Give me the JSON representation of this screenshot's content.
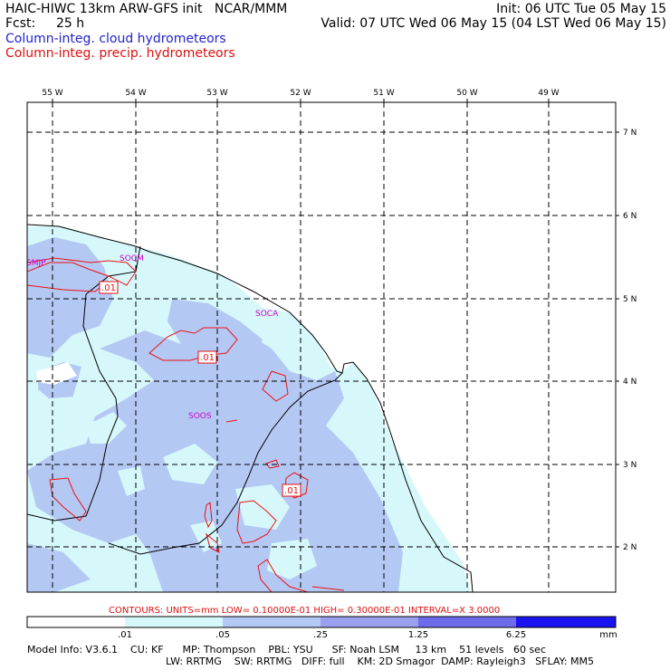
{
  "header": {
    "title_left": "HAIC-HIWC 13km ARW-GFS init   NCAR/MMM",
    "fcst_label": "Fcst:",
    "fcst_value": "25 h",
    "init": "Init: 06 UTC Tue 05 May 15",
    "valid": "Valid: 07 UTC Wed 06 May 15 (04 LST Wed 06 May 15)",
    "field_cloud": "Column-integ. cloud hydrometeors",
    "field_precip": "Column-integ. precip. hydrometeors"
  },
  "map": {
    "lon_labels": [
      "55 W",
      "54 W",
      "53 W",
      "52 W",
      "51 W",
      "50 W",
      "49 W"
    ],
    "lat_labels": [
      "7 N",
      "6 N",
      "5 N",
      "4 N",
      "3 N",
      "2 N"
    ],
    "stations": [
      "SMJP",
      "SOCM",
      "SOCA",
      "SOOS"
    ],
    "contour_labels": [
      ".01",
      ".01",
      ".01"
    ]
  },
  "contours_info": "CONTOURS:  UNITS=mm  LOW= 0.10000E-01  HIGH= 0.30000E-01  INTERVAL=X  3.0000",
  "colorbar": {
    "ticks": [
      ".01",
      ".05",
      ".25",
      "1.25",
      "6.25"
    ],
    "unit": "mm",
    "colors": [
      "#ffffff",
      "#d6f8fb",
      "#b4c8f4",
      "#9aa0ee",
      "#6f6cec",
      "#4a3cf0",
      "#1a12f0"
    ]
  },
  "model_info": {
    "line1": "Model Info: V3.6.1    CU: KF      MP: Thompson    PBL: YSU      SF: Noah LSM     13 km    51 levels   60 sec",
    "line2": "LW: RRTMG    SW: RRTMG   DIFF: full    KM: 2D Smagor  DAMP: Rayleigh3   SFLAY: MM5"
  },
  "colors": {
    "cloud_text": "#2222cc",
    "precip_text": "#dd1111",
    "station_text": "#cc00cc",
    "contour": "#ee1111"
  }
}
